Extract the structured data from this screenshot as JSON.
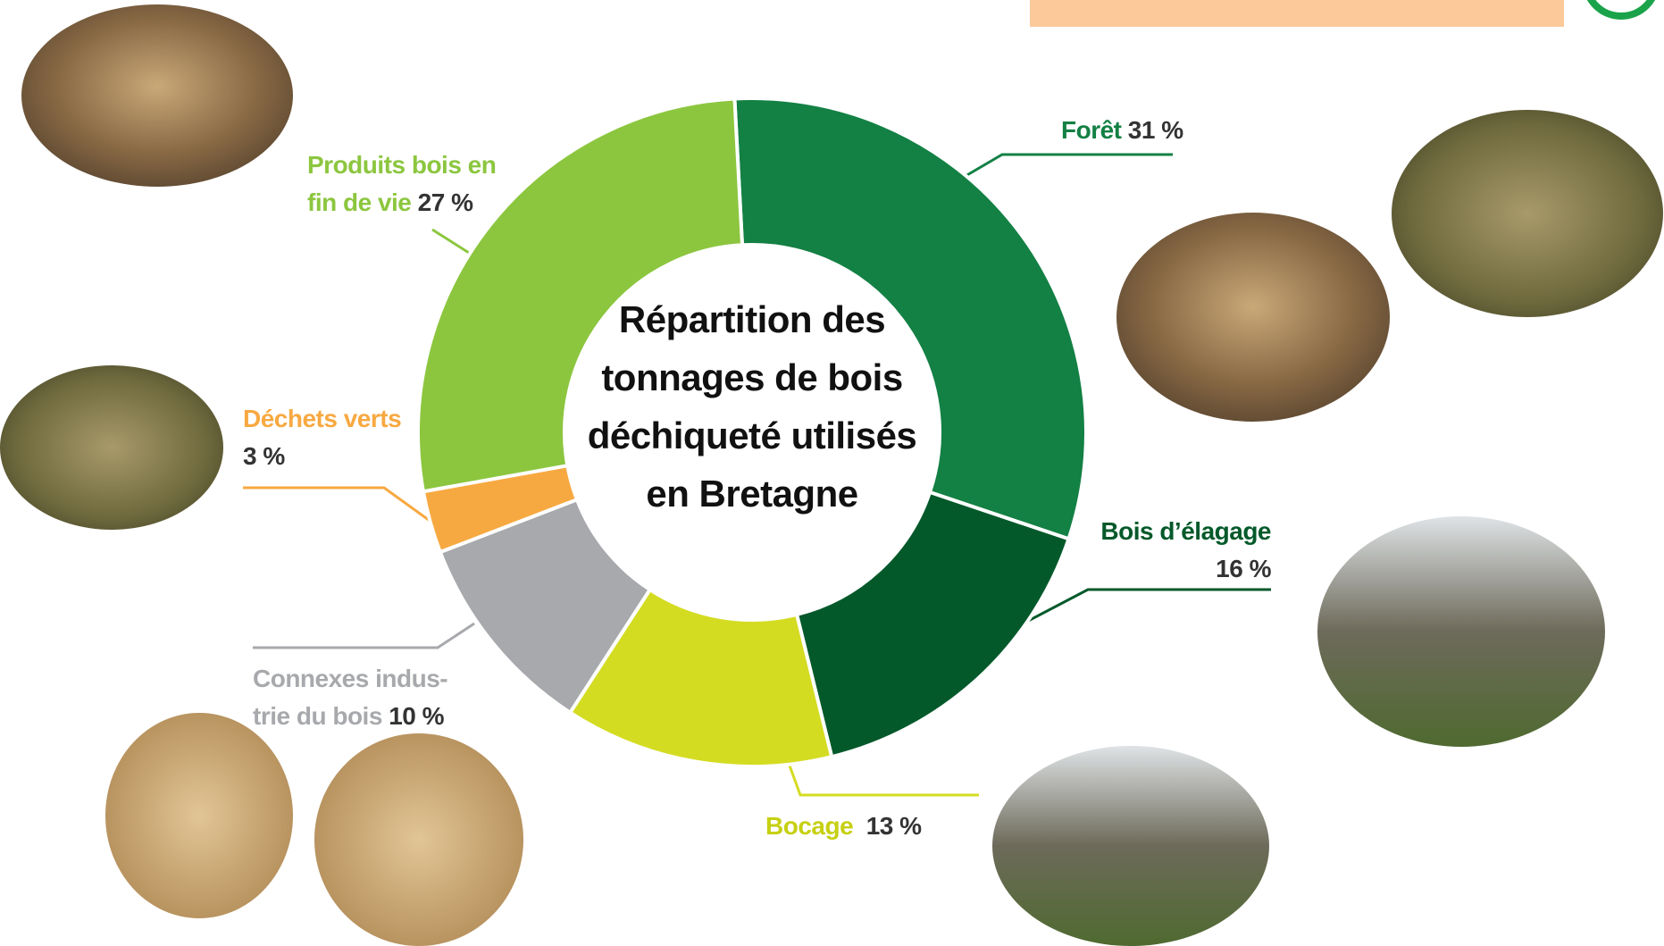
{
  "chart_data": {
    "type": "donut",
    "title": "Répartition des tonnages de bois déchiqueté utilisés en Bretagne",
    "categories": [
      "Forêt",
      "Bois d’élagage",
      "Bocage",
      "Connexes indus-\ntrie du bois",
      "Déchets verts",
      "Produits bois en\nfin de vie"
    ],
    "values": [
      31,
      16,
      13,
      10,
      3,
      27
    ],
    "value_labels": [
      "31 %",
      "16 %",
      "13 %",
      "10 %",
      "3 %",
      "27 %"
    ],
    "colors": [
      "#138044",
      "#04592a",
      "#d4dc22",
      "#a7a9ac",
      "#f7a941",
      "#8cc63f"
    ],
    "label_colors": [
      "#138044",
      "#04592a",
      "#c6d012",
      "#a7a9ac",
      "#f7a941",
      "#8cc63f"
    ]
  }
}
